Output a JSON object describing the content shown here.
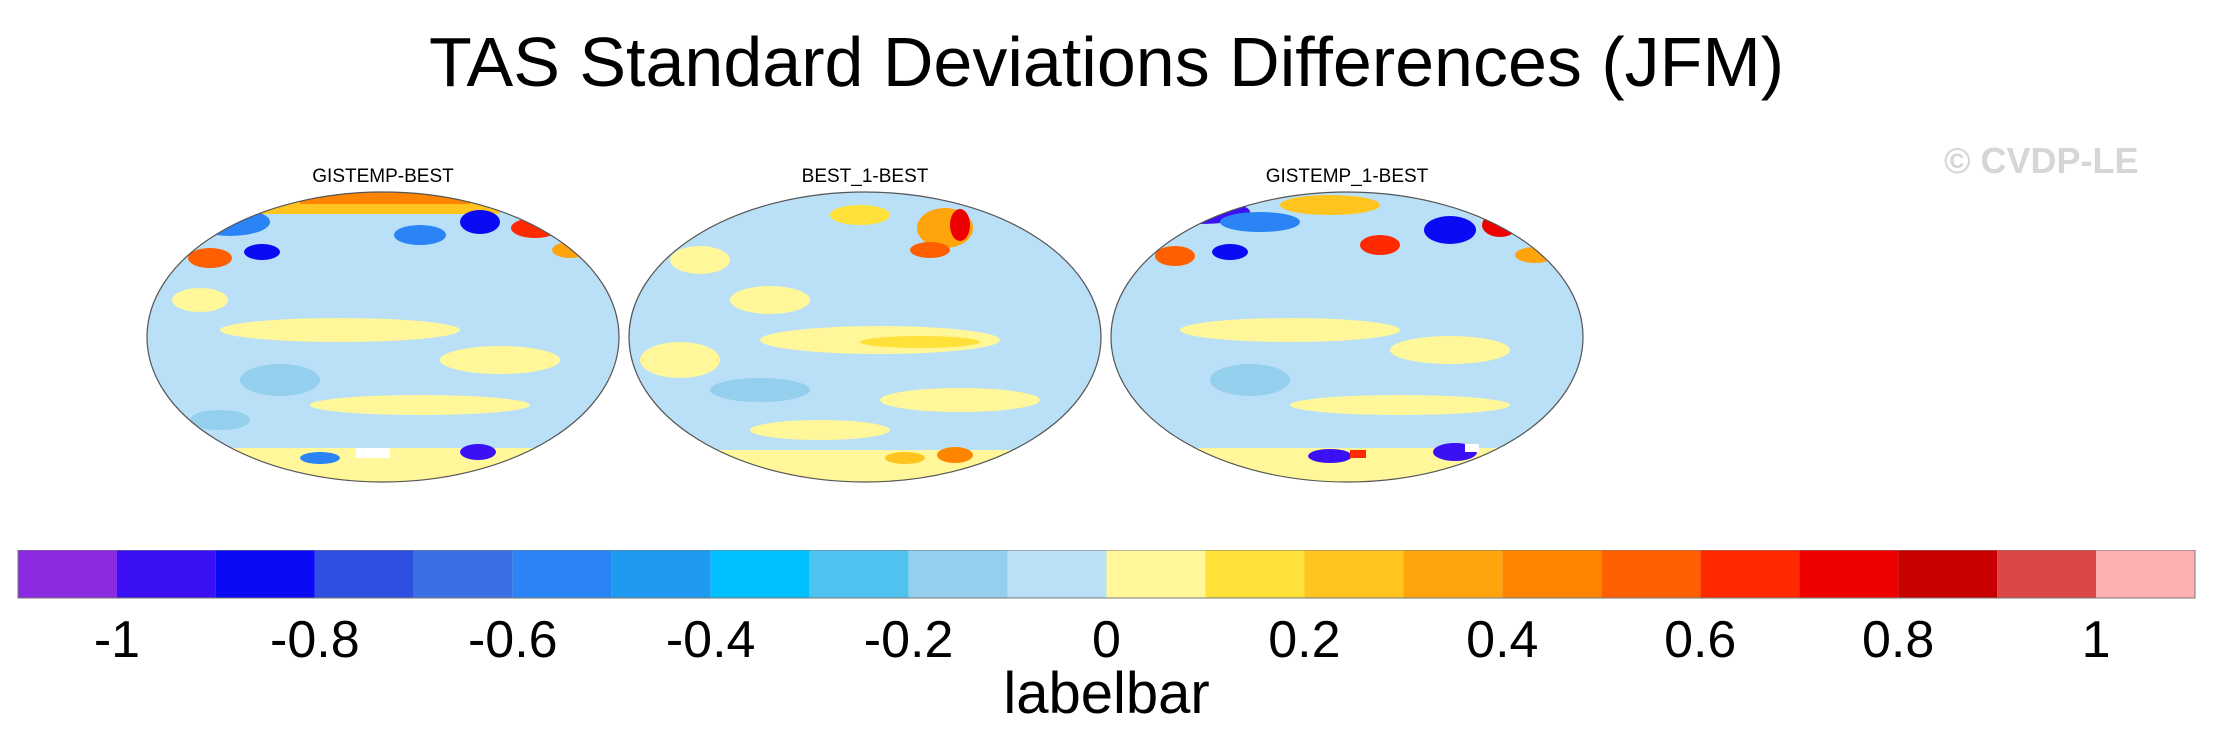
{
  "title": "TAS Standard Deviations Differences (JFM)",
  "watermark": "© CVDP-LE",
  "panels": [
    {
      "title": "GISTEMP-BEST"
    },
    {
      "title": "BEST_1-BEST"
    },
    {
      "title": "GISTEMP_1-BEST"
    }
  ],
  "colorbar": {
    "title": "labelbar",
    "tick_labels": [
      "-1",
      "-0.8",
      "-0.6",
      "-0.4",
      "-0.2",
      "0",
      "0.2",
      "0.4",
      "0.6",
      "0.8",
      "1"
    ],
    "tick_values": [
      -1,
      -0.8,
      -0.6,
      -0.4,
      -0.2,
      0,
      0.2,
      0.4,
      0.6,
      0.8,
      1
    ],
    "range": [
      -1.1,
      1.1
    ],
    "colors": [
      "#8a2be2",
      "#3b10f5",
      "#0a0af5",
      "#2f4fe0",
      "#3a6fe6",
      "#2a84f5",
      "#1e9bf0",
      "#00c0ff",
      "#4ec3f0",
      "#95cfee",
      "#b9e0f7",
      "#fff79a",
      "#ffe13a",
      "#ffc41e",
      "#ffa40a",
      "#ff8500",
      "#ff5f00",
      "#ff2a00",
      "#ef0000",
      "#c80000",
      "#dc4646",
      "#ffb0b0"
    ]
  }
}
